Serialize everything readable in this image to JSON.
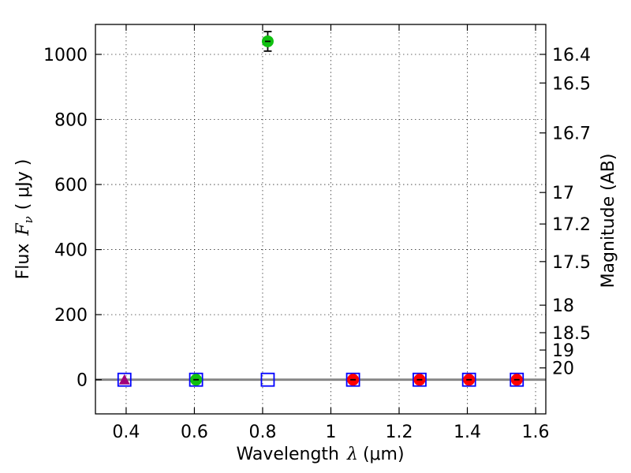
{
  "chart_data": {
    "type": "scatter",
    "xlabel_text": "Wavelength",
    "xlabel_lambda": "λ",
    "xlabel_unit": "(μm)",
    "ylabel_text": "Flux",
    "ylabel_symbol": "F",
    "ylabel_sub": "ν",
    "ylabel_unit": "( μJy )",
    "y2label": "Magnitude (AB)",
    "xlim": [
      0.31,
      1.63
    ],
    "ylim": [
      -105,
      1092
    ],
    "grid": true,
    "x_ticks": [
      {
        "value": 0.4,
        "label": "0.4"
      },
      {
        "value": 0.6,
        "label": "0.6"
      },
      {
        "value": 0.8,
        "label": "0.8"
      },
      {
        "value": 1.0,
        "label": "1"
      },
      {
        "value": 1.2,
        "label": "1.2"
      },
      {
        "value": 1.4,
        "label": "1.4"
      },
      {
        "value": 1.6,
        "label": "1.6"
      }
    ],
    "y_ticks": [
      {
        "value": 0,
        "label": "0"
      },
      {
        "value": 200,
        "label": "200"
      },
      {
        "value": 400,
        "label": "400"
      },
      {
        "value": 600,
        "label": "600"
      },
      {
        "value": 800,
        "label": "800"
      },
      {
        "value": 1000,
        "label": "1000"
      }
    ],
    "mag_ticks": [
      {
        "value": 16.4,
        "label": "16.4"
      },
      {
        "value": 16.5,
        "label": "16.5"
      },
      {
        "value": 16.7,
        "label": "16.7"
      },
      {
        "value": 17,
        "label": "17"
      },
      {
        "value": 17.2,
        "label": "17.2"
      },
      {
        "value": 17.5,
        "label": "17.5"
      },
      {
        "value": 18,
        "label": "18"
      },
      {
        "value": 18.5,
        "label": "18.5"
      },
      {
        "value": 19,
        "label": "19"
      },
      {
        "value": 20,
        "label": "20"
      }
    ],
    "model_points": [
      {
        "x": 0.395,
        "y": 0
      },
      {
        "x": 0.605,
        "y": 0
      },
      {
        "x": 0.815,
        "y": 0
      },
      {
        "x": 1.065,
        "y": 0
      },
      {
        "x": 1.26,
        "y": 0
      },
      {
        "x": 1.405,
        "y": 0
      },
      {
        "x": 1.545,
        "y": 0
      }
    ],
    "observed_points": [
      {
        "x": 0.395,
        "y": 0,
        "err": 0,
        "marker": "triangle",
        "color": "#a0007a"
      },
      {
        "x": 0.605,
        "y": 0,
        "err": 5,
        "marker": "circle",
        "color": "#10c010"
      },
      {
        "x": 0.815,
        "y": 1040,
        "err": 30,
        "marker": "circle",
        "color": "#10c010"
      },
      {
        "x": 1.065,
        "y": 0,
        "err": 5,
        "marker": "circle",
        "color": "#ff0000"
      },
      {
        "x": 1.26,
        "y": 0,
        "err": 5,
        "marker": "circle",
        "color": "#ff0000"
      },
      {
        "x": 1.405,
        "y": 0,
        "err": 5,
        "marker": "circle",
        "color": "#ff0000"
      },
      {
        "x": 1.545,
        "y": 0,
        "err": 5,
        "marker": "circle",
        "color": "#ff0000"
      }
    ],
    "model_marker_color": "#0000ff",
    "baseline_color": "#888888"
  }
}
